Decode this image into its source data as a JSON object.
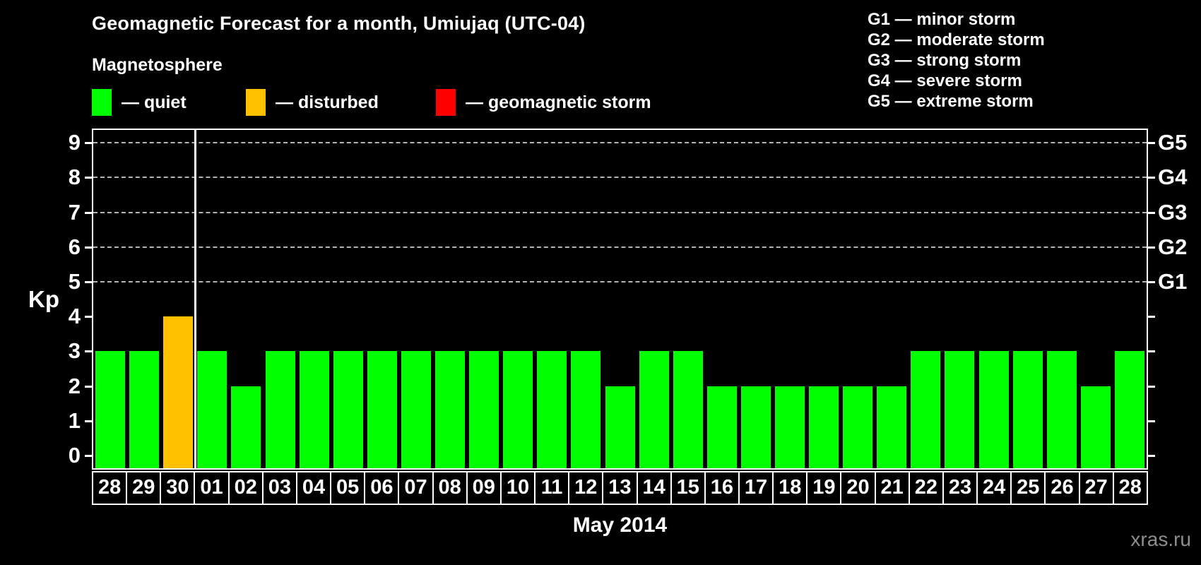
{
  "page": {
    "title": "Geomagnetic Forecast for a month, Umiujaq (UTC-04)",
    "subtitle": "Magnetosphere",
    "watermark": "xras.ru"
  },
  "legend": {
    "items": [
      {
        "name": "quiet",
        "label": "— quiet",
        "color": "#00ff00"
      },
      {
        "name": "disturbed",
        "label": "— disturbed",
        "color": "#ffc000"
      },
      {
        "name": "storm",
        "label": "— geomagnetic storm",
        "color": "#ff0000"
      }
    ]
  },
  "g_legend": {
    "items": [
      "G1 — minor storm",
      "G2 — moderate storm",
      "G3 — strong storm",
      "G4 — severe storm",
      "G5 — extreme storm"
    ]
  },
  "chart_data": {
    "type": "bar",
    "title": "Geomagnetic Forecast for a month, Umiujaq (UTC-04)",
    "ylabel": "Kp",
    "xlabel": "May 2014",
    "categories": [
      "28",
      "29",
      "30",
      "01",
      "02",
      "03",
      "04",
      "05",
      "06",
      "07",
      "08",
      "09",
      "10",
      "11",
      "12",
      "13",
      "14",
      "15",
      "16",
      "17",
      "18",
      "19",
      "20",
      "21",
      "22",
      "23",
      "24",
      "25",
      "26",
      "27",
      "28"
    ],
    "values": [
      3,
      3,
      4,
      3,
      2,
      3,
      3,
      3,
      3,
      3,
      3,
      3,
      3,
      3,
      3,
      2,
      3,
      3,
      2,
      2,
      2,
      2,
      2,
      2,
      3,
      3,
      3,
      3,
      3,
      2,
      3
    ],
    "bar_states": [
      "quiet",
      "quiet",
      "disturbed",
      "quiet",
      "quiet",
      "quiet",
      "quiet",
      "quiet",
      "quiet",
      "quiet",
      "quiet",
      "quiet",
      "quiet",
      "quiet",
      "quiet",
      "quiet",
      "quiet",
      "quiet",
      "quiet",
      "quiet",
      "quiet",
      "quiet",
      "quiet",
      "quiet",
      "quiet",
      "quiet",
      "quiet",
      "quiet",
      "quiet",
      "quiet",
      "quiet"
    ],
    "state_colors": {
      "quiet": "#00ff00",
      "disturbed": "#ffc000",
      "storm": "#ff0000"
    },
    "ylim": [
      0,
      9
    ],
    "yticks": [
      0,
      1,
      2,
      3,
      4,
      5,
      6,
      7,
      8,
      9
    ],
    "gridlines_at": [
      5,
      6,
      7,
      8,
      9
    ],
    "right_axis_labels": [
      {
        "label": "G1",
        "kp": 5
      },
      {
        "label": "G2",
        "kp": 6
      },
      {
        "label": "G3",
        "kp": 7
      },
      {
        "label": "G4",
        "kp": 8
      },
      {
        "label": "G5",
        "kp": 9
      }
    ],
    "separator_after_index": 2,
    "grid": "dashed horizontal lines at storm levels only",
    "legend_position": "top-left"
  }
}
